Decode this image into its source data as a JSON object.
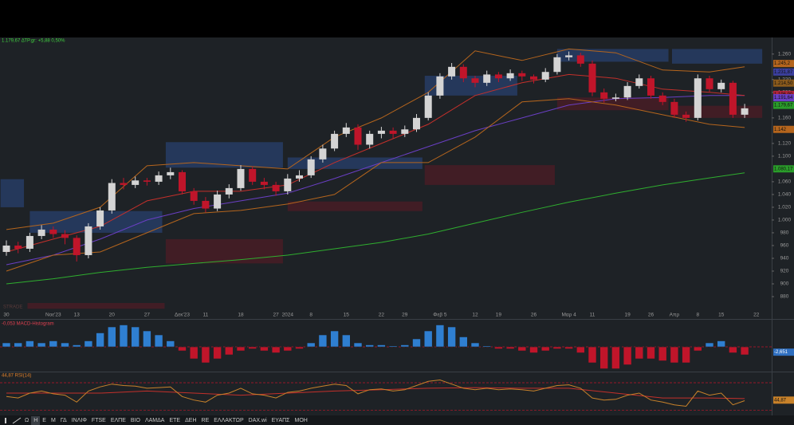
{
  "chart_data": [
    {
      "type": "candlestick",
      "title": "1.179,67 ΔΤΡ.gr: +5,88 0,50%",
      "watermark": "STRADE",
      "categories": [
        "30",
        null,
        null,
        null,
        "Νοε'23",
        null,
        "13",
        null,
        null,
        "20",
        null,
        null,
        "27",
        null,
        null,
        "Δεκ'23",
        null,
        "11",
        null,
        null,
        "18",
        null,
        null,
        "27",
        "2024",
        null,
        "8",
        null,
        null,
        "15",
        null,
        null,
        "22",
        null,
        "29",
        null,
        null,
        "Φεβ 5",
        null,
        null,
        "12",
        null,
        "19",
        null,
        null,
        "26",
        null,
        null,
        "Μαρ 4",
        null,
        "11",
        null,
        null,
        "19",
        null,
        "26",
        null,
        "Απρ",
        null,
        "8",
        null,
        "15",
        null,
        null,
        "22"
      ],
      "ohlc": [
        [
          950,
          968,
          944,
          960
        ],
        [
          960,
          966,
          948,
          955
        ],
        [
          955,
          980,
          950,
          975
        ],
        [
          975,
          992,
          970,
          985
        ],
        [
          985,
          990,
          972,
          978
        ],
        [
          978,
          984,
          962,
          972
        ],
        [
          972,
          976,
          935,
          945
        ],
        [
          945,
          995,
          940,
          990
        ],
        [
          990,
          1020,
          985,
          1015
        ],
        [
          1015,
          1064,
          1010,
          1058
        ],
        [
          1058,
          1066,
          1048,
          1055
        ],
        [
          1055,
          1068,
          1050,
          1062
        ],
        [
          1062,
          1066,
          1054,
          1060
        ],
        [
          1060,
          1076,
          1055,
          1070
        ],
        [
          1070,
          1082,
          1064,
          1075
        ],
        [
          1075,
          1078,
          1040,
          1045
        ],
        [
          1045,
          1050,
          1024,
          1030
        ],
        [
          1030,
          1036,
          1012,
          1018
        ],
        [
          1018,
          1046,
          1014,
          1040
        ],
        [
          1040,
          1056,
          1034,
          1050
        ],
        [
          1050,
          1086,
          1046,
          1080
        ],
        [
          1080,
          1084,
          1055,
          1060
        ],
        [
          1060,
          1066,
          1048,
          1055
        ],
        [
          1055,
          1060,
          1038,
          1045
        ],
        [
          1045,
          1072,
          1040,
          1065
        ],
        [
          1065,
          1078,
          1060,
          1070
        ],
        [
          1070,
          1100,
          1066,
          1095
        ],
        [
          1095,
          1118,
          1090,
          1112
        ],
        [
          1112,
          1140,
          1108,
          1135
        ],
        [
          1135,
          1152,
          1130,
          1145
        ],
        [
          1145,
          1150,
          1110,
          1118
        ],
        [
          1118,
          1140,
          1112,
          1135
        ],
        [
          1135,
          1146,
          1128,
          1140
        ],
        [
          1140,
          1145,
          1128,
          1135
        ],
        [
          1135,
          1148,
          1130,
          1142
        ],
        [
          1142,
          1166,
          1138,
          1160
        ],
        [
          1160,
          1200,
          1156,
          1195
        ],
        [
          1195,
          1230,
          1190,
          1225
        ],
        [
          1225,
          1246,
          1220,
          1240
        ],
        [
          1240,
          1244,
          1216,
          1222
        ],
        [
          1222,
          1226,
          1208,
          1215
        ],
        [
          1215,
          1234,
          1210,
          1228
        ],
        [
          1228,
          1232,
          1216,
          1222
        ],
        [
          1222,
          1236,
          1218,
          1230
        ],
        [
          1230,
          1234,
          1218,
          1225
        ],
        [
          1225,
          1228,
          1214,
          1220
        ],
        [
          1220,
          1238,
          1216,
          1232
        ],
        [
          1232,
          1260,
          1228,
          1255
        ],
        [
          1255,
          1264,
          1250,
          1258
        ],
        [
          1258,
          1262,
          1240,
          1245
        ],
        [
          1245,
          1250,
          1194,
          1200
        ],
        [
          1200,
          1206,
          1184,
          1190
        ],
        [
          1190,
          1198,
          1186,
          1192
        ],
        [
          1192,
          1216,
          1188,
          1210
        ],
        [
          1210,
          1228,
          1206,
          1222
        ],
        [
          1222,
          1226,
          1190,
          1195
        ],
        [
          1195,
          1200,
          1180,
          1185
        ],
        [
          1185,
          1190,
          1160,
          1165
        ],
        [
          1165,
          1170,
          1154,
          1160
        ],
        [
          1160,
          1228,
          1156,
          1222
        ],
        [
          1222,
          1226,
          1200,
          1205
        ],
        [
          1205,
          1220,
          1200,
          1215
        ],
        [
          1215,
          1218,
          1160,
          1165
        ],
        [
          1165,
          1182,
          1160,
          1175
        ],
        null
      ],
      "up_color": "#d4d4d4",
      "down_color": "#c0152a",
      "overlays": [
        {
          "color": "#2fae2f",
          "x": [
            0,
            4,
            8,
            12,
            16,
            20,
            24,
            28,
            32,
            36,
            40,
            44,
            48,
            52,
            56,
            60,
            63
          ],
          "values": [
            900,
            908,
            918,
            926,
            932,
            938,
            945,
            955,
            965,
            978,
            995,
            1012,
            1028,
            1042,
            1055,
            1066,
            1074
          ]
        },
        {
          "color": "#6a3fc4",
          "x": [
            0,
            4,
            8,
            12,
            16,
            20,
            24,
            28,
            32,
            36,
            40,
            44,
            48,
            52,
            56,
            60,
            63
          ],
          "values": [
            930,
            945,
            970,
            1000,
            1018,
            1030,
            1042,
            1065,
            1090,
            1115,
            1140,
            1160,
            1180,
            1190,
            1192,
            1195,
            1195
          ]
        },
        {
          "color": "#c4302b",
          "x": [
            0,
            4,
            8,
            12,
            16,
            20,
            24,
            28,
            32,
            36,
            40,
            44,
            48,
            52,
            56,
            60,
            63
          ],
          "values": [
            950,
            970,
            990,
            1030,
            1045,
            1045,
            1055,
            1090,
            1120,
            1150,
            1195,
            1215,
            1228,
            1222,
            1205,
            1200,
            1195
          ]
        },
        {
          "color": "#b5651d",
          "x": [
            0,
            4,
            8,
            12,
            16,
            20,
            24,
            28,
            32,
            36,
            40,
            44,
            48,
            52,
            56,
            60,
            63
          ],
          "values": [
            985,
            995,
            1020,
            1085,
            1090,
            1085,
            1080,
            1130,
            1160,
            1200,
            1265,
            1250,
            1268,
            1262,
            1235,
            1232,
            1240
          ]
        },
        {
          "color": "#b5651d",
          "x": [
            0,
            4,
            8,
            12,
            16,
            20,
            24,
            28,
            32,
            36,
            40,
            44,
            48,
            52,
            56,
            60,
            63
          ],
          "values": [
            920,
            945,
            950,
            980,
            1010,
            1015,
            1025,
            1040,
            1090,
            1090,
            1130,
            1185,
            1190,
            1180,
            1165,
            1150,
            1145
          ]
        }
      ],
      "zones": [
        {
          "color": "#2b4a86",
          "from": -0.5,
          "to": 1.5,
          "low": 1020,
          "high": 1064
        },
        {
          "color": "#2b4a86",
          "from": 2,
          "to": 13.3,
          "low": 980,
          "high": 1014
        },
        {
          "color": "#2b4a86",
          "from": 13.6,
          "to": 23.6,
          "low": 1082,
          "high": 1122
        },
        {
          "color": "#2b4a86",
          "from": 24,
          "to": 35.5,
          "low": 1080,
          "high": 1098
        },
        {
          "color": "#2b4a86",
          "from": 35.7,
          "to": 43.6,
          "low": 1195,
          "high": 1226
        },
        {
          "color": "#2b4a86",
          "from": 47,
          "to": 56.5,
          "low": 1248,
          "high": 1268
        },
        {
          "color": "#2b4a86",
          "from": 56.8,
          "to": 64.5,
          "low": 1245,
          "high": 1268
        },
        {
          "color": "#5e1a24",
          "from": 1.8,
          "to": 13.5,
          "low": 861,
          "high": 870
        },
        {
          "color": "#5e1a24",
          "from": 13.6,
          "to": 23.6,
          "low": 932,
          "high": 970
        },
        {
          "color": "#5e1a24",
          "from": 24,
          "to": 35.5,
          "low": 1014,
          "high": 1029
        },
        {
          "color": "#5e1a24",
          "from": 35.7,
          "to": 46.8,
          "low": 1055,
          "high": 1086
        },
        {
          "color": "#5e1a24",
          "from": 47,
          "to": 56.5,
          "low": 1172,
          "high": 1192
        },
        {
          "color": "#5e1a24",
          "from": 56.8,
          "to": 64.5,
          "low": 1160,
          "high": 1179
        }
      ],
      "ylim": [
        860,
        1286
      ],
      "yticks": [
        {
          "value": 1260,
          "label": "1.260"
        },
        {
          "value": 1220,
          "label": "1.220"
        },
        {
          "value": 1200,
          "label": "1.200"
        },
        {
          "value": 1160,
          "label": "1.160"
        },
        {
          "value": 1120,
          "label": "1.120"
        },
        {
          "value": 1100,
          "label": "1.100"
        },
        {
          "value": 1060,
          "label": "1.060"
        },
        {
          "value": 1040,
          "label": "1.040"
        },
        {
          "value": 1020,
          "label": "1.020"
        },
        {
          "value": 1000,
          "label": "1.000"
        },
        980,
        960,
        940,
        920,
        900,
        880
      ],
      "price_labels": [
        {
          "value": 1245.2,
          "label": "1.245,2",
          "color": "#b5651d"
        },
        {
          "value": 1231.87,
          "label": "1.231,87",
          "color": "#3b3f9e"
        },
        {
          "value": 1214.5,
          "label": "1.214,50",
          "color": "#8a5a1c"
        },
        {
          "value": 1196.9,
          "label": "1.196,90",
          "color": "#b0243a"
        },
        {
          "value": 1191.64,
          "label": "1.191,64",
          "color": "#6a3fc4"
        },
        {
          "value": 1179.67,
          "label": "1.179,67",
          "color": "#2a9d2a"
        },
        {
          "value": 1142,
          "label": "1.142",
          "color": "#b5651d"
        },
        {
          "value": 1080.17,
          "label": "1.080,17",
          "color": "#2a9d2a"
        }
      ]
    },
    {
      "type": "bar",
      "title": "-0,053 MACD-Histogram",
      "values": [
        2,
        2,
        3,
        2,
        3,
        2,
        1,
        3,
        7,
        10,
        11,
        10,
        8,
        6,
        3,
        -2,
        -6,
        -8,
        -6,
        -4,
        -2,
        -1,
        -2,
        -3,
        -2,
        -1,
        2,
        6,
        8,
        6,
        2,
        1,
        1,
        0.5,
        1,
        4,
        8,
        11,
        10,
        5,
        2,
        0.5,
        -1,
        -1,
        -2,
        -3,
        -2,
        -1,
        -1,
        -3,
        -8,
        -11,
        -11,
        -9,
        -6,
        -6,
        -7,
        -8,
        -8,
        -2,
        2,
        3,
        -3,
        -4,
        null
      ],
      "pos_color": "#2f7fd1",
      "neg_color": "#c0152a",
      "ylim": [
        -12,
        12
      ],
      "last_label": {
        "value": -2.651,
        "label": "-2,651",
        "color": "#2f6fc0"
      }
    },
    {
      "type": "line",
      "title": "44,87 RSI(14)",
      "values": [
        50,
        48,
        55,
        58,
        54,
        52,
        42,
        58,
        64,
        68,
        66,
        65,
        62,
        63,
        64,
        50,
        45,
        42,
        52,
        55,
        62,
        54,
        52,
        48,
        56,
        58,
        62,
        65,
        68,
        66,
        54,
        60,
        61,
        58,
        60,
        66,
        72,
        74,
        68,
        62,
        60,
        62,
        60,
        61,
        60,
        58,
        62,
        66,
        67,
        62,
        48,
        45,
        46,
        52,
        55,
        45,
        42,
        38,
        36,
        58,
        52,
        55,
        38,
        44,
        null
      ],
      "color": "#c8822a",
      "signal": {
        "color": "#c4302b",
        "x": [
          0,
          4,
          8,
          12,
          16,
          20,
          24,
          28,
          32,
          36,
          40,
          44,
          48,
          52,
          56,
          60,
          63
        ],
        "values": [
          55,
          55,
          55,
          58,
          55,
          52,
          55,
          58,
          60,
          62,
          63,
          62,
          62,
          55,
          48,
          48,
          47
        ]
      },
      "levels": [
        70,
        30
      ],
      "ylim": [
        25,
        85
      ],
      "last_label": {
        "value": 44.87,
        "label": "44,87",
        "color": "#c8822a"
      }
    }
  ],
  "toolbar": [
    "Ω",
    "Η",
    "Ε",
    "Μ",
    "ΓΔ",
    "INΛΙΦ",
    "FTSE",
    "ΕΛΠΕ",
    "ΒΙΟ",
    "ΛΑΜΔΑ",
    "ΕΤΕ",
    "ΔΕΗ",
    "RE",
    "ΕΛΛΑΚΤΩΡ",
    "DAX.wi",
    "ΕΥΑΠΣ",
    "ΜΟΗ"
  ],
  "toolbar_active": 1
}
